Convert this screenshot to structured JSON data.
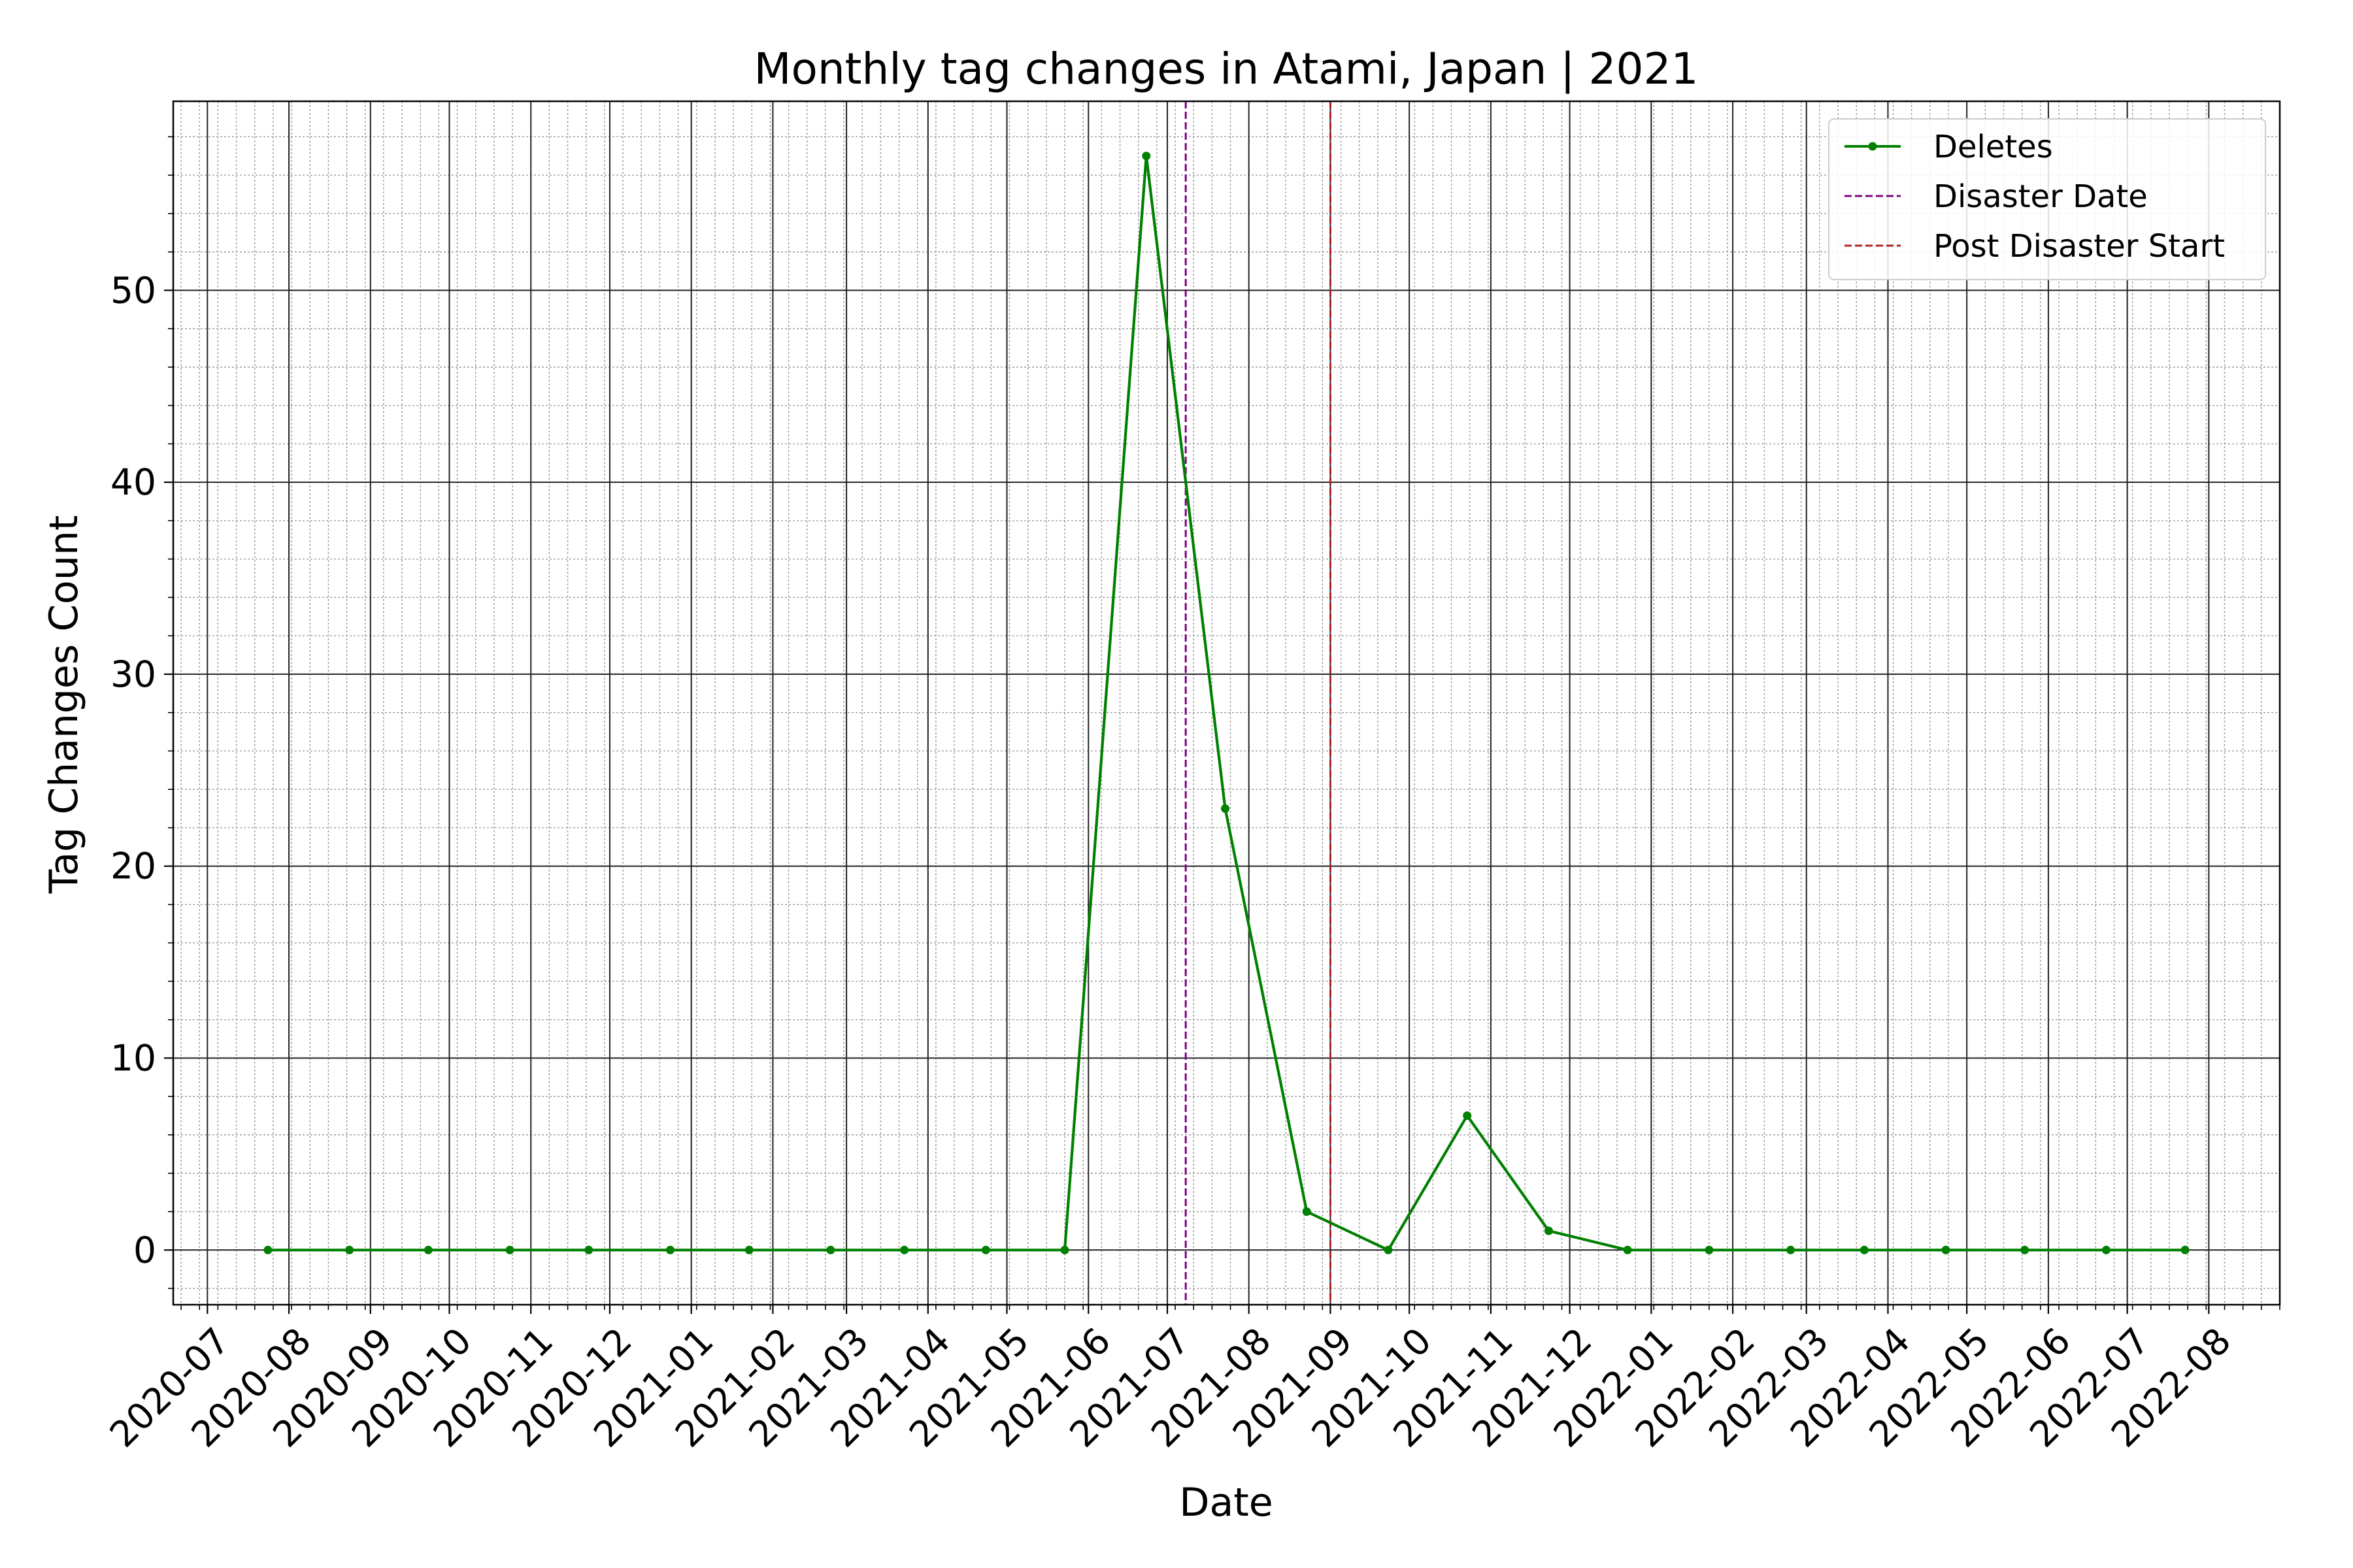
{
  "chart_data": {
    "type": "line",
    "title": "Monthly tag changes in Atami, Japan | 2021",
    "xlabel": "Date",
    "ylabel": "Tag Changes Count",
    "xlim": [
      "2020-06-18",
      "2022-08-28"
    ],
    "ylim": [
      -2.85,
      59.85
    ],
    "y_ticks": [
      0,
      10,
      20,
      30,
      40,
      50
    ],
    "x_ticks": [
      "2020-07",
      "2020-08",
      "2020-09",
      "2020-10",
      "2020-11",
      "2020-12",
      "2021-01",
      "2021-02",
      "2021-03",
      "2021-04",
      "2021-05",
      "2021-06",
      "2021-07",
      "2021-08",
      "2021-09",
      "2021-10",
      "2021-11",
      "2021-12",
      "2022-01",
      "2022-02",
      "2022-03",
      "2022-04",
      "2022-05",
      "2022-06",
      "2022-07",
      "2022-08"
    ],
    "grid": true,
    "legend_position": "top-right",
    "series": [
      {
        "name": "Deletes",
        "color": "#008000",
        "x": [
          "2020-07-24",
          "2020-08-24",
          "2020-09-23",
          "2020-10-24",
          "2020-11-23",
          "2020-12-24",
          "2021-01-23",
          "2021-02-23",
          "2021-03-23",
          "2021-04-23",
          "2021-05-23",
          "2021-06-23",
          "2021-07-23",
          "2021-08-23",
          "2021-09-23",
          "2021-10-23",
          "2021-11-23",
          "2021-12-23",
          "2022-01-23",
          "2022-02-23",
          "2022-03-23",
          "2022-04-23",
          "2022-05-23",
          "2022-06-23",
          "2022-07-23"
        ],
        "values": [
          0,
          0,
          0,
          0,
          0,
          0,
          0,
          0,
          0,
          0,
          0,
          57,
          23,
          2,
          0,
          7,
          1,
          0,
          0,
          0,
          0,
          0,
          0,
          0,
          0
        ]
      }
    ],
    "vlines": [
      {
        "name": "Disaster Date",
        "x": "2021-07-08",
        "color": "#800080",
        "style": "dashed"
      },
      {
        "name": "Post Disaster Start",
        "x": "2021-09-01",
        "color": "#b22222",
        "style": "dashed"
      }
    ]
  }
}
